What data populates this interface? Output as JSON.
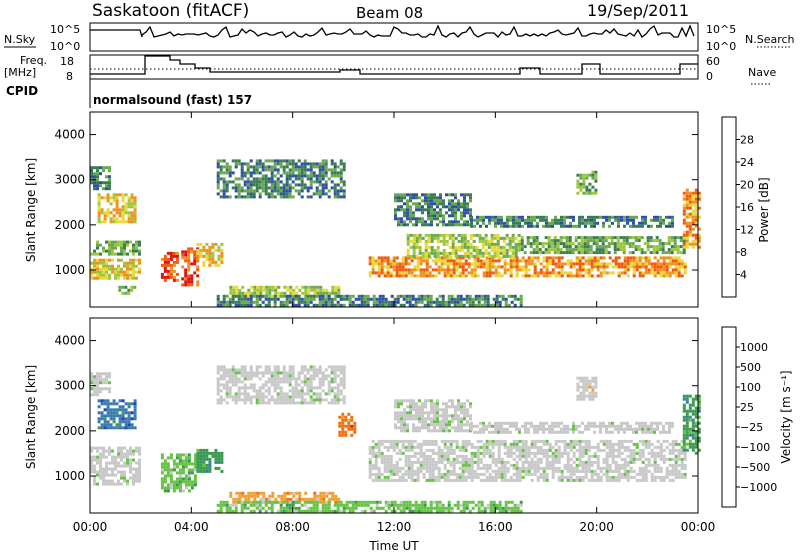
{
  "header": {
    "title": "Saskatoon (fitACF)",
    "beam": "Beam 08",
    "date": "19/Sep/2011"
  },
  "top_panels": {
    "nsky_label": "N.Sky",
    "nsearch_label": "N.Search",
    "freq_label_1": "Freq.",
    "freq_label_2": "[MHz]",
    "nave_label": "Nave",
    "cpid_label": "CPID",
    "cpid_value": "normalsound (fast) 157",
    "noise_ticks_left": [
      "10^5",
      "10^0"
    ],
    "noise_ticks_right": [
      "10^5",
      "10^0"
    ],
    "freq_ticks": [
      "18",
      "8"
    ],
    "nave_ticks": [
      "60",
      "0"
    ]
  },
  "chart_data": [
    {
      "type": "heatmap",
      "name": "power",
      "ylabel": "Slant Range [km]",
      "y_ticks": [
        "4000",
        "3000",
        "2000",
        "1000"
      ],
      "y_tick_values": [
        4000,
        3000,
        2000,
        1000
      ],
      "ylim": [
        180,
        4500
      ],
      "xlim": [
        0,
        24
      ],
      "colorbar_label": "Power [dB]",
      "colorbar_ticks": [
        "28",
        "24",
        "20",
        "16",
        "12",
        "8",
        "4"
      ],
      "colorbar_tick_values": [
        28,
        24,
        20,
        16,
        12,
        8,
        4
      ],
      "colorbar_range": [
        0,
        32
      ],
      "colors": [
        "#1a1aff",
        "#2e50a8",
        "#3a7d55",
        "#6aa84f",
        "#9ac73e",
        "#e8d83a",
        "#f09020",
        "#f05a10",
        "#e01010"
      ],
      "regions": [
        {
          "t0": 0.0,
          "t1": 1.9,
          "r0": 850,
          "r1": 1250,
          "v": 20
        },
        {
          "t0": 0.0,
          "t1": 1.9,
          "r0": 1350,
          "r1": 1650,
          "v": 12
        },
        {
          "t0": 0.3,
          "t1": 1.8,
          "r0": 2100,
          "r1": 2700,
          "v": 18
        },
        {
          "t0": 0.0,
          "t1": 0.8,
          "r0": 2800,
          "r1": 3300,
          "v": 6
        },
        {
          "t0": 1.0,
          "t1": 1.8,
          "r0": 500,
          "r1": 650,
          "v": 12
        },
        {
          "t0": 2.8,
          "t1": 3.4,
          "r0": 800,
          "r1": 1400,
          "v": 26
        },
        {
          "t0": 3.6,
          "t1": 4.2,
          "r0": 700,
          "r1": 1500,
          "v": 26
        },
        {
          "t0": 4.2,
          "t1": 5.2,
          "r0": 1100,
          "r1": 1600,
          "v": 18
        },
        {
          "t0": 5.5,
          "t1": 9.8,
          "r0": 450,
          "r1": 650,
          "v": 14
        },
        {
          "t0": 5.0,
          "t1": 10.0,
          "r0": 2600,
          "r1": 3450,
          "v": 8
        },
        {
          "t0": 11.0,
          "t1": 23.5,
          "r0": 900,
          "r1": 1300,
          "v": 24
        },
        {
          "t0": 12.5,
          "t1": 17.0,
          "r0": 1300,
          "r1": 1800,
          "v": 14
        },
        {
          "t0": 17.0,
          "t1": 23.5,
          "r0": 1400,
          "r1": 1750,
          "v": 12
        },
        {
          "t0": 12.0,
          "t1": 15.0,
          "r0": 2000,
          "r1": 2700,
          "v": 8
        },
        {
          "t0": 15.0,
          "t1": 23.0,
          "r0": 2000,
          "r1": 2200,
          "v": 6
        },
        {
          "t0": 19.2,
          "t1": 20.0,
          "r0": 2700,
          "r1": 3200,
          "v": 12
        },
        {
          "t0": 23.4,
          "t1": 24.0,
          "r0": 1500,
          "r1": 2800,
          "v": 22
        },
        {
          "t0": 5.0,
          "t1": 17.0,
          "r0": 250,
          "r1": 450,
          "v": 6
        }
      ]
    },
    {
      "type": "heatmap",
      "name": "velocity",
      "ylabel": "Slant Range [km]",
      "xlabel": "Time UT",
      "y_ticks": [
        "4000",
        "3000",
        "2000",
        "1000"
      ],
      "y_tick_values": [
        4000,
        3000,
        2000,
        1000
      ],
      "ylim": [
        180,
        4500
      ],
      "xlim": [
        0,
        24
      ],
      "x_ticks": [
        "00:00",
        "04:00",
        "08:00",
        "12:00",
        "16:00",
        "20:00",
        "00:00"
      ],
      "x_tick_values": [
        0,
        4,
        8,
        12,
        16,
        20,
        24
      ],
      "colorbar_label": "Velocity [m s⁻¹]",
      "colorbar_ticks": [
        "1000",
        "500",
        "100",
        "25",
        "−25",
        "−100",
        "−500",
        "−1000"
      ],
      "colors": [
        "#2040c0",
        "#3a7ab0",
        "#3a9a50",
        "#66c444",
        "#c8c8c8",
        "#c8c8c8",
        "#f0a030",
        "#f07010",
        "#e02010"
      ],
      "regions": [
        {
          "t0": 0.0,
          "t1": 1.9,
          "r0": 850,
          "r1": 1650,
          "v": 4
        },
        {
          "t0": 0.3,
          "t1": 1.8,
          "r0": 2100,
          "r1": 2700,
          "v": 1
        },
        {
          "t0": 0.0,
          "t1": 0.8,
          "r0": 2800,
          "r1": 3300,
          "v": 4
        },
        {
          "t0": 2.8,
          "t1": 4.2,
          "r0": 700,
          "r1": 1500,
          "v": 3
        },
        {
          "t0": 4.2,
          "t1": 5.2,
          "r0": 1100,
          "r1": 1600,
          "v": 2
        },
        {
          "t0": 5.5,
          "t1": 9.8,
          "r0": 450,
          "r1": 650,
          "v": 6
        },
        {
          "t0": 5.0,
          "t1": 10.0,
          "r0": 2600,
          "r1": 3450,
          "v": 4
        },
        {
          "t0": 9.8,
          "t1": 10.4,
          "r0": 1900,
          "r1": 2400,
          "v": 7
        },
        {
          "t0": 11.0,
          "t1": 23.5,
          "r0": 900,
          "r1": 1800,
          "v": 4
        },
        {
          "t0": 12.0,
          "t1": 15.0,
          "r0": 2000,
          "r1": 2700,
          "v": 4
        },
        {
          "t0": 15.0,
          "t1": 23.0,
          "r0": 2000,
          "r1": 2200,
          "v": 4
        },
        {
          "t0": 19.2,
          "t1": 20.0,
          "r0": 2700,
          "r1": 3200,
          "v": 5
        },
        {
          "t0": 23.4,
          "t1": 24.0,
          "r0": 1500,
          "r1": 2800,
          "v": 2
        },
        {
          "t0": 5.0,
          "t1": 17.0,
          "r0": 250,
          "r1": 450,
          "v": 3
        }
      ]
    }
  ]
}
